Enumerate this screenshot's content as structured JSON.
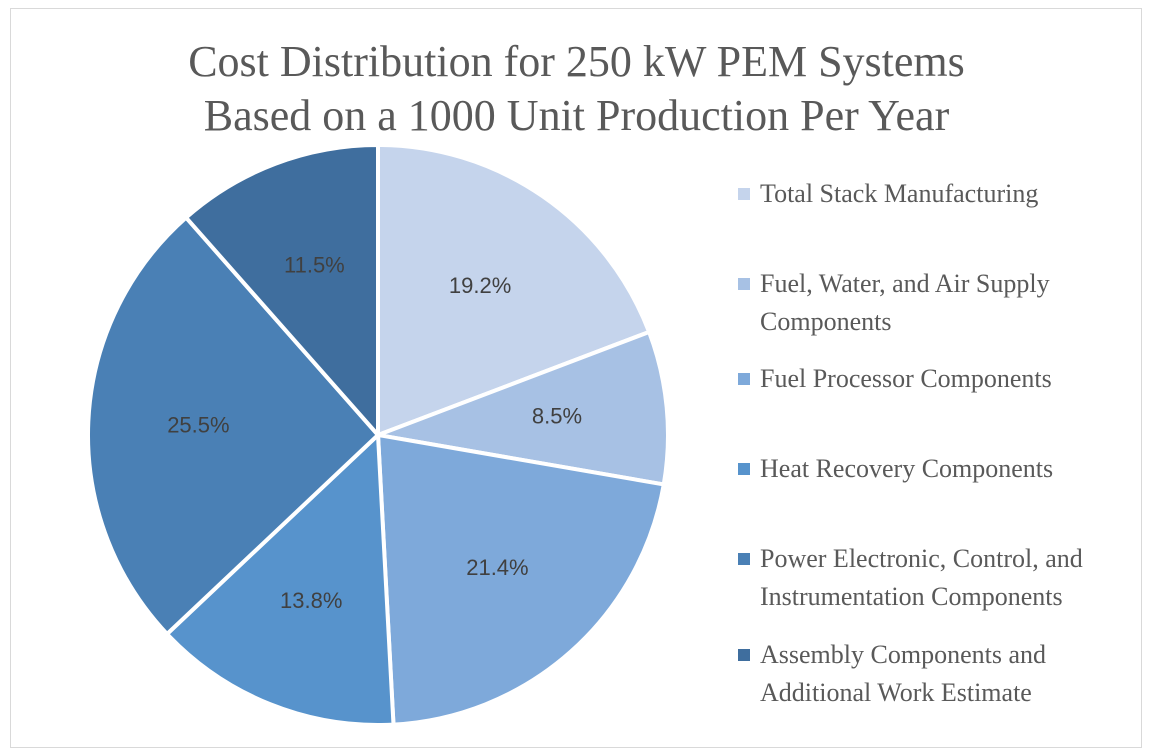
{
  "chart_data": {
    "type": "pie",
    "title": [
      "Cost Distribution for 250 kW PEM Systems",
      "Based on a 1000 Unit Production Per Year"
    ],
    "categories": [
      "Total Stack Manufacturing",
      "Fuel, Water, and Air Supply Components",
      "Fuel Processor Components",
      "Heat Recovery Components",
      "Power Electronic, Control, and Instrumentation Components",
      "Assembly Components and Additional Work Estimate"
    ],
    "values": [
      19.2,
      8.5,
      21.4,
      13.8,
      25.5,
      11.5
    ],
    "value_labels": [
      "19.2%",
      "8.5%",
      "21.4%",
      "13.8%",
      "25.5%",
      "11.5%"
    ],
    "colors": [
      "#c5d4ec",
      "#a7c1e4",
      "#7ea9da",
      "#5793cc",
      "#4a80b5",
      "#3f6e9e"
    ],
    "legend": "right"
  }
}
